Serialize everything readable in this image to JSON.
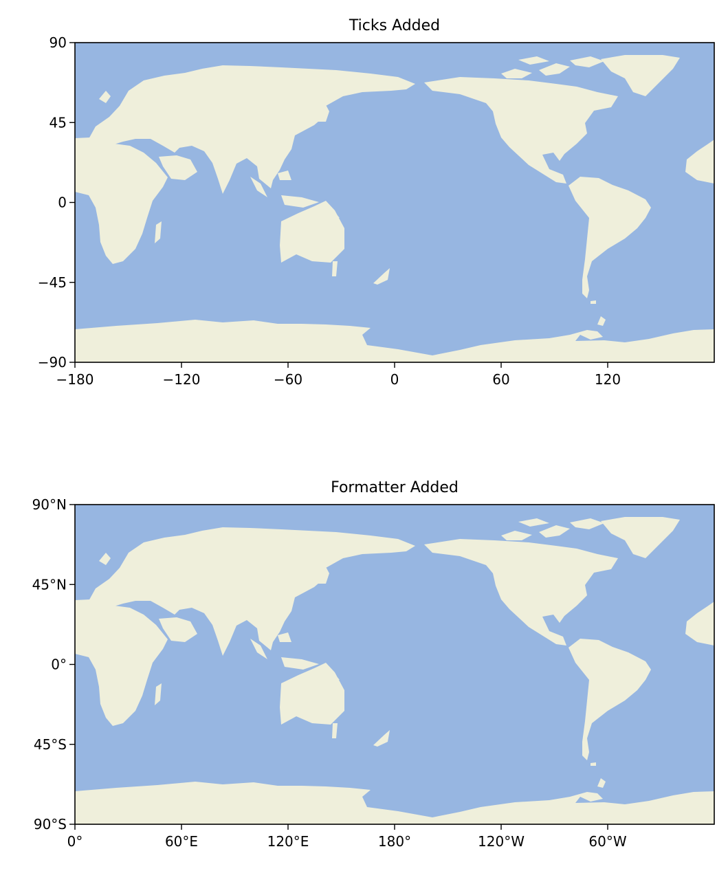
{
  "colors": {
    "ocean": "#97b6e1",
    "land": "#efefdb",
    "frame": "#000000"
  },
  "maps": [
    {
      "title": "Ticks Added",
      "yticks": [
        "90",
        "45",
        "0",
        "−45",
        "−90"
      ],
      "xticks": [
        "−180",
        "−120",
        "−60",
        "0",
        "60",
        "120"
      ]
    },
    {
      "title": "Formatter Added",
      "yticks": [
        "90°N",
        "45°N",
        "0°",
        "45°S",
        "90°S"
      ],
      "xticks": [
        "0°",
        "60°E",
        "120°E",
        "180°",
        "120°W",
        "60°W"
      ]
    }
  ]
}
